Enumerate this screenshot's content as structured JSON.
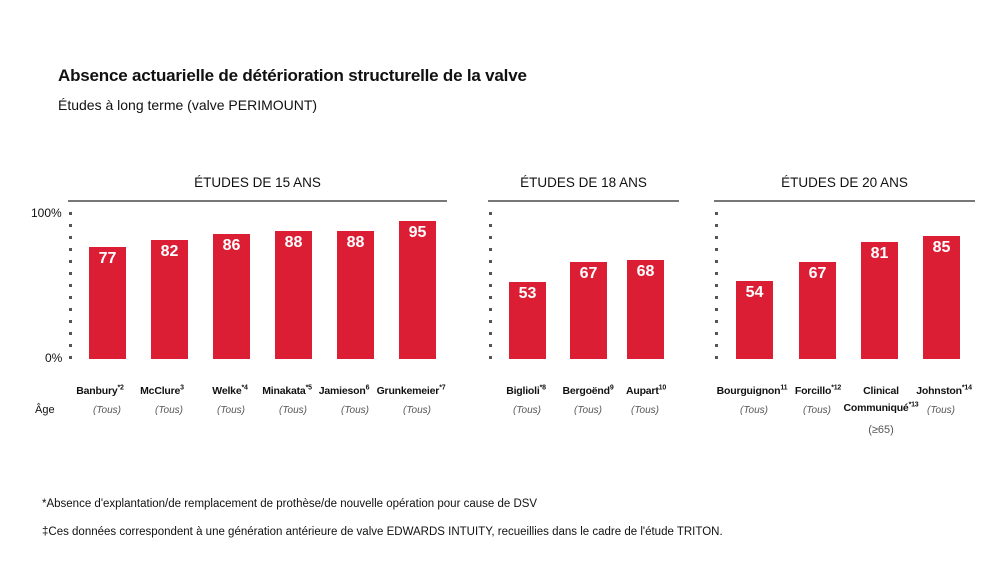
{
  "title": "Absence actuarielle de détérioration structurelle de la valve",
  "subtitle": "Études à long terme (valve PERIMOUNT)",
  "age_label": "Âge",
  "chart_data": [
    {
      "type": "bar",
      "title": "ÉTUDES DE 15 ANS",
      "ylim": [
        0,
        100
      ],
      "yticks": [
        "100%",
        "0%"
      ],
      "categories": [
        "Banbury",
        "McClure",
        "Welke",
        "Minakata",
        "Jamieson",
        "Grunkemeier"
      ],
      "sup": [
        "*2",
        "3",
        "*4",
        "*5",
        "6",
        "*7"
      ],
      "ages": [
        "(Tous)",
        "(Tous)",
        "(Tous)",
        "(Tous)",
        "(Tous)",
        "(Tous)"
      ],
      "values": [
        77,
        82,
        86,
        88,
        88,
        95
      ]
    },
    {
      "type": "bar",
      "title": "ÉTUDES DE 18 ANS",
      "ylim": [
        0,
        100
      ],
      "categories": [
        "Biglioli",
        "Bergoënd",
        "Aupart"
      ],
      "sup": [
        "*8",
        "9",
        "10"
      ],
      "ages": [
        "(Tous)",
        "(Tous)",
        "(Tous)"
      ],
      "values": [
        53,
        67,
        68
      ]
    },
    {
      "type": "bar",
      "title": "ÉTUDES DE 20 ANS",
      "ylim": [
        0,
        100
      ],
      "categories": [
        "Bourguignon",
        "Forcillo",
        "Clinical Communiqué",
        "Johnston"
      ],
      "sup": [
        "11",
        "*12",
        "*13",
        "*14"
      ],
      "ages": [
        "(Tous)",
        "(Tous)",
        "",
        "(Tous)"
      ],
      "age_extra": "(≥65)",
      "values": [
        54,
        67,
        81,
        85
      ]
    }
  ],
  "footnotes": [
    "*Absence d'explantation/de remplacement de prothèse/de nouvelle opération pour cause de DSV",
    "‡Ces données correspondent à une génération antérieure de valve EDWARDS INTUITY, recueillies dans le cadre de l'étude TRITON."
  ],
  "colors": {
    "bar": "#dc1e35"
  }
}
